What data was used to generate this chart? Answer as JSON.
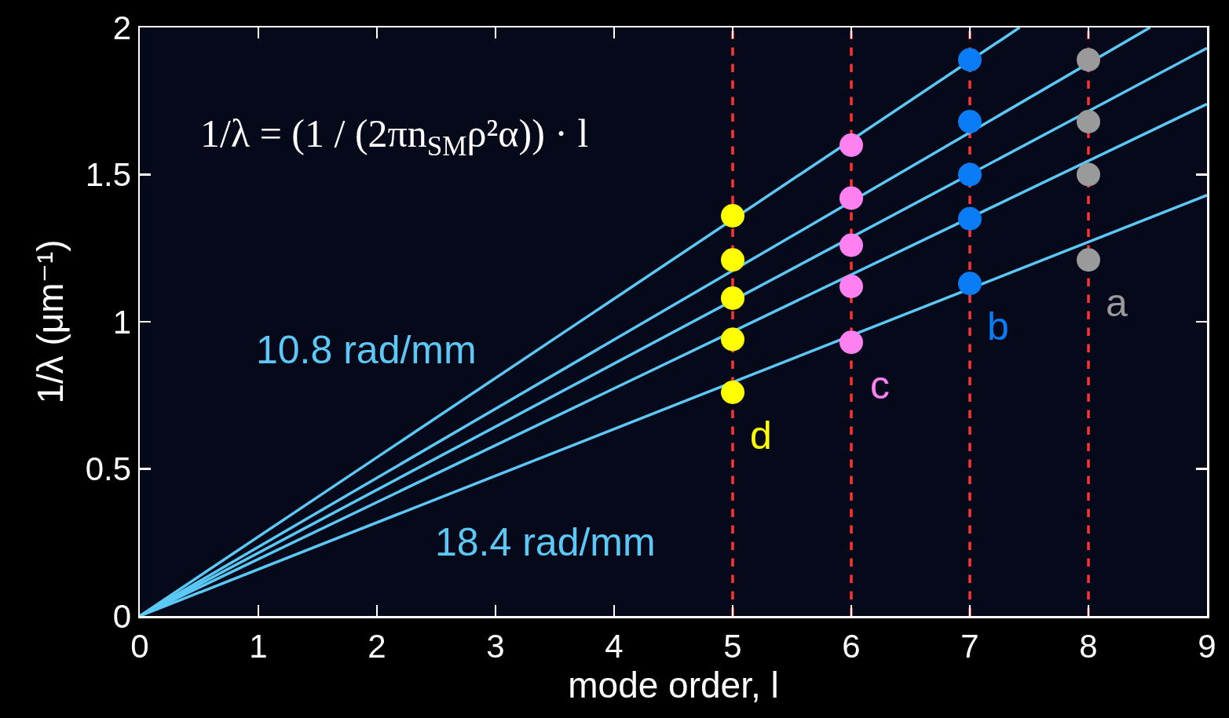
{
  "chart_data": {
    "type": "scatter",
    "xlabel": "mode order, l",
    "ylabel": "1/λ (μm⁻¹)",
    "xlim": [
      0,
      9
    ],
    "ylim": [
      0,
      2
    ],
    "xticks": [
      0,
      1,
      2,
      3,
      4,
      5,
      6,
      7,
      8,
      9
    ],
    "yticks": [
      0,
      0.5,
      1,
      1.5,
      2
    ],
    "grid": false,
    "marker": "circle",
    "series": [
      {
        "type": "line",
        "marker": "none",
        "name": "10.8 rad/mm",
        "color": "#5bc8f5",
        "x": [
          0,
          7.42
        ],
        "values": [
          0,
          2
        ]
      },
      {
        "type": "line",
        "marker": "none",
        "color": "#5bc8f5",
        "x": [
          0,
          8.52
        ],
        "values": [
          0,
          2
        ]
      },
      {
        "type": "line",
        "marker": "none",
        "color": "#5bc8f5",
        "x": [
          0,
          9
        ],
        "values": [
          0,
          1.93
        ]
      },
      {
        "type": "line",
        "marker": "none",
        "color": "#5bc8f5",
        "x": [
          0,
          9
        ],
        "values": [
          0,
          1.74
        ]
      },
      {
        "type": "line",
        "marker": "none",
        "name": "18.4 rad/mm",
        "color": "#5bc8f5",
        "x": [
          0,
          9
        ],
        "values": [
          0,
          1.43
        ]
      },
      {
        "name": "d",
        "color": "#ffff00",
        "x": [
          5,
          5,
          5,
          5,
          5
        ],
        "values": [
          1.36,
          1.21,
          1.08,
          0.94,
          0.76
        ]
      },
      {
        "name": "c",
        "color": "#ff80f0",
        "x": [
          6,
          6,
          6,
          6,
          6
        ],
        "values": [
          1.6,
          1.42,
          1.26,
          1.12,
          0.93
        ]
      },
      {
        "name": "b",
        "color": "#0a7cf5",
        "x": [
          7,
          7,
          7,
          7,
          7
        ],
        "values": [
          1.89,
          1.68,
          1.5,
          1.35,
          1.13
        ]
      },
      {
        "name": "a",
        "color": "#9a9a9a",
        "x": [
          8,
          8,
          8,
          8
        ],
        "values": [
          1.89,
          1.68,
          1.5,
          1.21
        ]
      }
    ],
    "ref_lines": [
      {
        "axis": "x",
        "value": 5,
        "color": "#ff3333",
        "line_style": "dashed"
      },
      {
        "axis": "x",
        "value": 6,
        "color": "#ff3333",
        "line_style": "dashed"
      },
      {
        "axis": "x",
        "value": 7,
        "color": "#ff3333",
        "line_style": "dashed"
      },
      {
        "axis": "x",
        "value": 8,
        "color": "#ff3333",
        "line_style": "dashed"
      }
    ],
    "annotations": [
      "1/λ = (1 / (2πn$_{SM}$ρ²α)) · l"
    ]
  }
}
